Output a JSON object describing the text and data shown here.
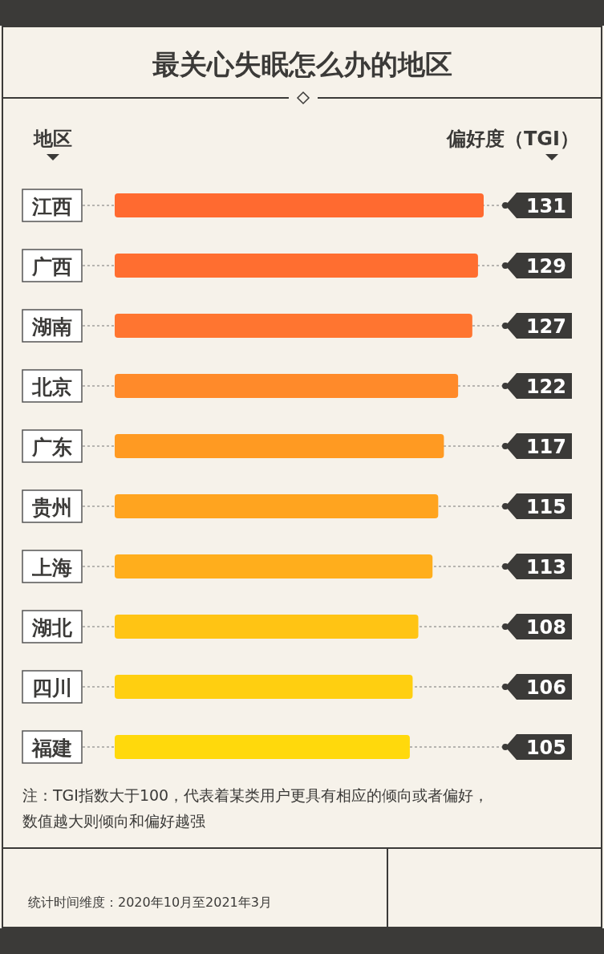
{
  "chart_data": {
    "type": "bar",
    "orientation": "horizontal",
    "title": "最关心失眠怎么办的地区",
    "ylabel": "地区",
    "xlabel": "偏好度（TGI）",
    "categories": [
      "江西",
      "广西",
      "湖南",
      "北京",
      "广东",
      "贵州",
      "上海",
      "湖北",
      "四川",
      "福建"
    ],
    "values": [
      131,
      129,
      127,
      122,
      117,
      115,
      113,
      108,
      106,
      105
    ],
    "colors": [
      "#ff6a30",
      "#ff6e30",
      "#ff7530",
      "#ff8a2a",
      "#ff9a22",
      "#ffa41f",
      "#ffae1c",
      "#ffc414",
      "#ffcf10",
      "#ffd90c"
    ],
    "data_labels": true,
    "annotations": [
      "注：TGI指数大于100，代表着某类用户更具有相应的倾向或者偏好，数值越大则倾向和偏好越强",
      "统计时间维度：2020年10月至2021年3月"
    ]
  }
}
